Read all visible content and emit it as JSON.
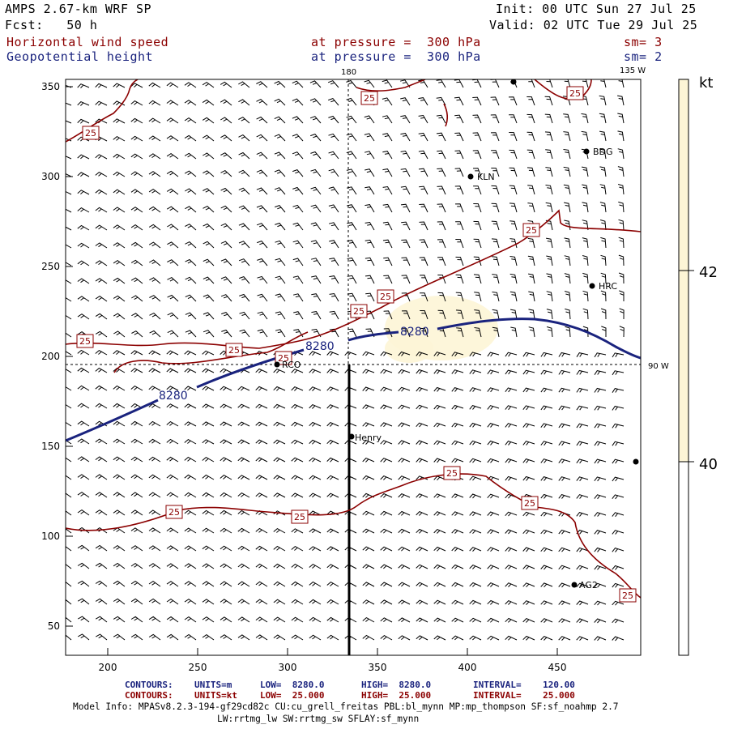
{
  "header": {
    "model": "AMPS 2.67-km WRF SP",
    "init": "Init: 00 UTC Sun 27 Jul 25",
    "fcst": "Fcst:   50 h",
    "valid": "Valid: 02 UTC Tue 29 Jul 25",
    "field1": "Horizontal wind speed",
    "field1_level": "at pressure =  300 hPa",
    "field1_sm": "sm= 3",
    "field2": "Geopotential height",
    "field2_level": "at pressure =  300 hPa",
    "field2_sm": "sm= 2"
  },
  "map": {
    "x_ticks": [
      "200",
      "250",
      "300",
      "350",
      "400",
      "450"
    ],
    "y_ticks": [
      "50",
      "100",
      "150",
      "200",
      "250",
      "300",
      "350"
    ],
    "lon_labels": {
      "top_180": "180",
      "top_135w": "135 W",
      "right_90w": "90 W"
    },
    "contour_height_label": "8280",
    "contour_speed_label": "25",
    "stations": [
      {
        "name": "KLN"
      },
      {
        "name": "BDG"
      },
      {
        "name": "HRC"
      },
      {
        "name": "RCO"
      },
      {
        "name": "Henry"
      },
      {
        "name": "AG2"
      }
    ]
  },
  "colorbar": {
    "unit": "kt",
    "labels": [
      "42",
      "40"
    ],
    "colors": {
      "high": "#fdf5d6",
      "low": "#ffffff"
    }
  },
  "footer": {
    "line1": {
      "contours": "CONTOURS:",
      "units": "UNITS=m",
      "low": "LOW=  8280.0",
      "high": "HIGH=  8280.0",
      "interval": "INTERVAL=    120.00"
    },
    "line2": {
      "contours": "CONTOURS:",
      "units": "UNITS=kt",
      "low": "LOW=  25.000",
      "high": "HIGH=  25.000",
      "interval": "INTERVAL=    25.000"
    },
    "model_info": "Model Info: MPASv8.2.3-194-gf29cd82c CU:cu_grell_freitas PBL:bl_mynn MP:mp_thompson SF:sf_noahmp 2.7",
    "model_info2": "LW:rrtmg_lw SW:rrtmg_sw SFLAY:sf_mynn"
  },
  "colors": {
    "contour_speed": "#8b0000",
    "contour_height": "#1a237e",
    "barb": "#000000"
  }
}
